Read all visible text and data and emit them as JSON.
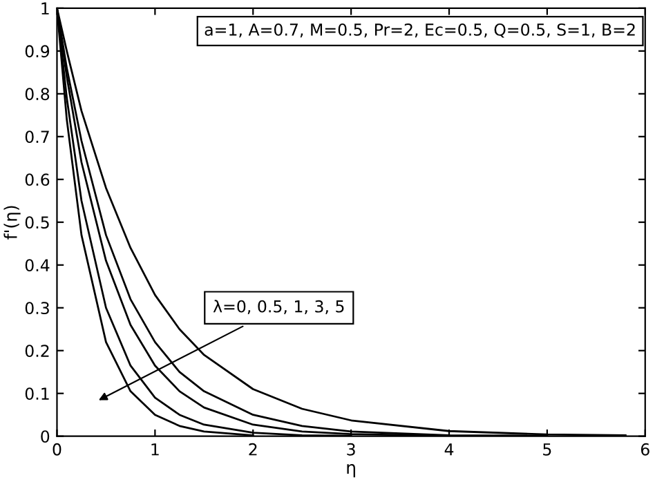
{
  "chart_data": {
    "type": "line",
    "xlabel": "η",
    "ylabel": "f'(η)",
    "series": [
      {
        "color": "#000000",
        "x": [
          0,
          0.1,
          0.25,
          0.5,
          0.75,
          1,
          1.25,
          1.5,
          2,
          2.5,
          3,
          4,
          5,
          5.8
        ],
        "values": [
          1,
          0.9,
          0.76,
          0.58,
          0.44,
          0.33,
          0.25,
          0.19,
          0.11,
          0.064,
          0.037,
          0.012,
          0.004,
          0.002
        ]
      },
      {
        "color": "#000000",
        "x": [
          0,
          0.1,
          0.25,
          0.5,
          0.75,
          1,
          1.25,
          1.5,
          2,
          2.5,
          3,
          4,
          5
        ],
        "values": [
          1,
          0.86,
          0.69,
          0.47,
          0.32,
          0.22,
          0.15,
          0.105,
          0.05,
          0.024,
          0.011,
          0.002,
          0.001
        ]
      },
      {
        "color": "#000000",
        "x": [
          0,
          0.1,
          0.25,
          0.5,
          0.75,
          1,
          1.25,
          1.5,
          2,
          2.5,
          3,
          4
        ],
        "values": [
          1,
          0.84,
          0.64,
          0.41,
          0.26,
          0.165,
          0.105,
          0.067,
          0.027,
          0.011,
          0.005,
          0.001
        ]
      },
      {
        "color": "#000000",
        "x": [
          0,
          0.1,
          0.25,
          0.5,
          0.75,
          1,
          1.25,
          1.5,
          2,
          2.5,
          3
        ],
        "values": [
          1,
          0.79,
          0.55,
          0.3,
          0.165,
          0.09,
          0.05,
          0.027,
          0.008,
          0.002,
          0.001
        ]
      },
      {
        "color": "#000000",
        "x": [
          0,
          0.1,
          0.25,
          0.5,
          0.75,
          1,
          1.25,
          1.5,
          2
        ],
        "values": [
          1,
          0.74,
          0.47,
          0.22,
          0.105,
          0.05,
          0.024,
          0.011,
          0.002
        ]
      }
    ],
    "xlim": [
      0,
      6
    ],
    "ylim": [
      0,
      1
    ],
    "xticks": [
      0,
      1,
      2,
      3,
      4,
      5,
      6
    ],
    "yticks": [
      0,
      0.1,
      0.2,
      0.3,
      0.4,
      0.5,
      0.6,
      0.7,
      0.8,
      0.9,
      1
    ],
    "annotations": [
      "a=1, A=0.7, M=0.5, Pr=2, Ec=0.5, Q=0.5, S=1, B=2",
      "λ=0, 0.5, 1, 3, 5"
    ],
    "grid": false,
    "legend": false,
    "marker": "none",
    "line_style": "solid"
  }
}
